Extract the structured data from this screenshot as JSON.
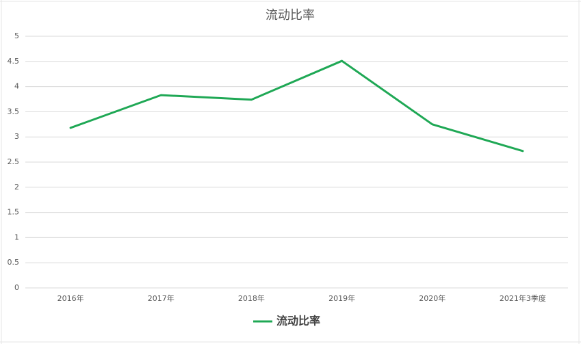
{
  "chart_data": {
    "type": "line",
    "title": "流动比率",
    "categories": [
      "2016年",
      "2017年",
      "2018年",
      "2019年",
      "2020年",
      "2021年3季度"
    ],
    "series": [
      {
        "name": "流动比率",
        "color": "#1fa855",
        "values": [
          3.18,
          3.83,
          3.74,
          4.51,
          3.25,
          2.72
        ]
      }
    ],
    "ylim": [
      0,
      5
    ],
    "yticks": [
      0,
      0.5,
      1,
      1.5,
      2,
      2.5,
      3,
      3.5,
      4,
      4.5,
      5
    ],
    "grid": true,
    "legend": "bottom"
  }
}
